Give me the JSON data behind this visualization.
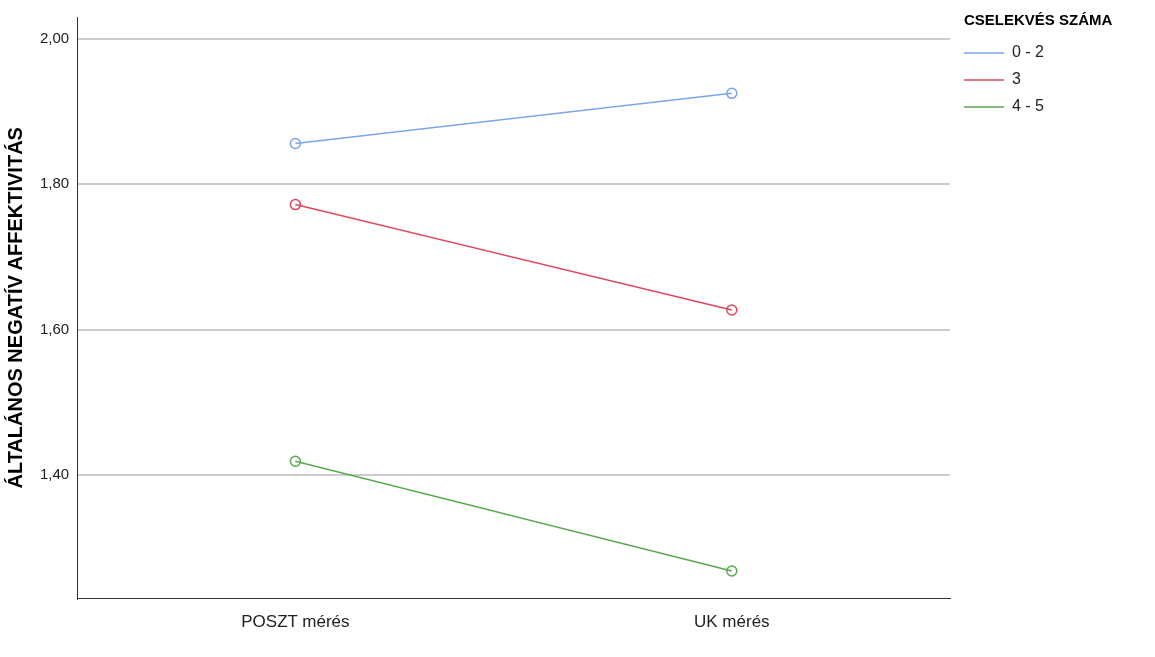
{
  "chart_data": {
    "type": "line",
    "ylabel": "ÁLTALÁNOS NEGATÍV AFFEKTIVITÁS",
    "legend_title": "CSELEKVÉS SZÁMA",
    "categories": [
      "POSZT mérés",
      "UK mérés"
    ],
    "series": [
      {
        "name": "0 - 2",
        "color": "#7aa6e8",
        "values": [
          1.856,
          1.925
        ]
      },
      {
        "name": "3",
        "color": "#e0475e",
        "values": [
          1.772,
          1.627
        ]
      },
      {
        "name": "4 - 5",
        "color": "#59a84e",
        "values": [
          1.419,
          1.268
        ]
      }
    ],
    "ylim": [
      1.23,
      2.03
    ],
    "yticks": [
      {
        "value": 1.4,
        "label": "1,40"
      },
      {
        "value": 1.6,
        "label": "1,60"
      },
      {
        "value": 1.8,
        "label": "1,80"
      },
      {
        "value": 2.0,
        "label": "2,00"
      }
    ],
    "grid": "y",
    "legend": "top right",
    "marker": "circle",
    "line_style": "solid"
  }
}
